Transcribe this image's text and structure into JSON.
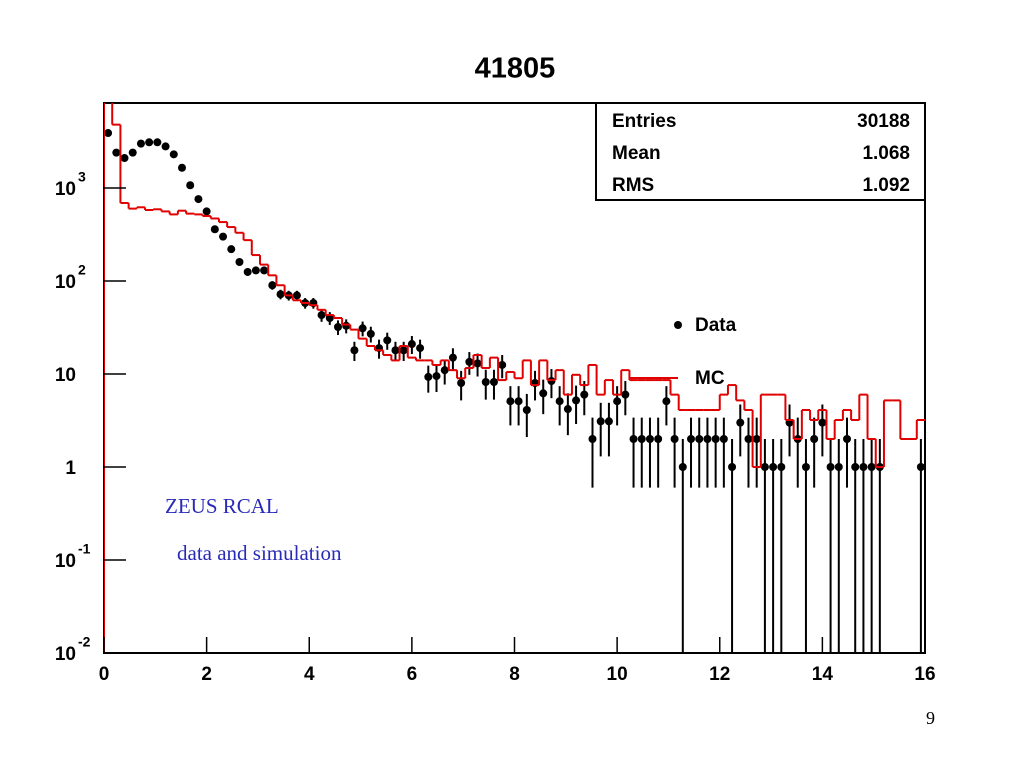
{
  "chart_data": {
    "type": "histogram",
    "title": "41805",
    "bins": [
      0,
      0.16,
      0.32,
      0.48,
      0.64,
      0.8,
      0.96,
      1.12,
      1.28,
      1.44,
      1.6,
      1.76,
      1.92,
      2.08,
      2.24,
      2.4,
      2.56,
      2.72,
      2.88,
      3.04,
      3.2,
      3.36,
      3.52,
      3.68,
      3.84,
      4,
      4.16,
      4.32,
      4.48,
      4.64,
      4.8,
      4.96,
      5.12,
      5.28,
      5.44,
      5.6,
      5.76,
      5.92,
      6.08,
      6.24,
      6.4,
      6.56,
      6.72,
      6.88,
      7.04,
      7.2,
      7.36,
      7.52,
      7.68,
      7.84,
      8,
      8.16,
      8.32,
      8.48,
      8.64,
      8.8,
      8.96,
      9.12,
      9.28,
      9.44,
      9.6,
      9.76,
      9.92,
      10.08,
      10.24,
      10.4,
      10.56,
      10.72,
      10.88,
      11.04,
      11.2,
      11.36,
      11.52,
      11.68,
      11.84,
      12,
      12.16,
      12.32,
      12.48,
      12.64,
      12.8,
      12.96,
      13.12,
      13.28,
      13.44,
      13.6,
      13.76,
      13.92,
      14.08,
      14.24,
      14.4,
      14.56,
      14.72,
      14.88,
      15.04,
      15.2,
      15.36,
      15.52,
      15.68,
      15.84,
      16
    ],
    "series": [
      {
        "name": "Data",
        "color": "#000000",
        "style": "points",
        "values": [
          3900,
          2400,
          2100,
          2400,
          3000,
          3100,
          3100,
          2800,
          2300,
          1650,
          1070,
          760,
          560,
          360,
          300,
          220,
          160,
          125,
          130,
          130,
          90,
          72,
          70,
          70,
          58,
          58,
          43,
          40,
          32,
          33,
          18,
          31,
          27,
          19,
          23,
          18,
          18,
          21,
          19,
          9.3,
          9.5,
          11,
          15,
          8,
          13.5,
          13,
          8.2,
          8.2,
          12.5,
          5.1,
          5.1,
          4.1,
          8,
          6.2,
          8.4,
          5.1,
          4.2,
          5.2,
          6,
          2,
          3.1,
          3.1,
          5.1,
          6,
          2,
          2,
          2,
          2,
          5.1,
          2,
          1,
          2,
          2,
          2,
          2,
          2,
          1,
          3,
          2,
          2,
          1,
          1,
          1,
          3,
          2,
          1,
          2,
          3,
          1,
          1,
          2,
          1,
          1,
          1,
          1,
          null,
          null,
          null,
          null,
          1
        ],
        "errors": [
          62,
          49,
          46,
          49,
          55,
          56,
          56,
          53,
          48,
          41,
          33,
          28,
          24,
          19,
          17,
          15,
          13,
          11,
          11,
          11,
          9.5,
          8.5,
          8.4,
          8.4,
          7.6,
          7.6,
          6.6,
          6.3,
          5.7,
          5.7,
          4.2,
          5.6,
          5.2,
          4.4,
          4.8,
          4.2,
          4.2,
          4.6,
          4.4,
          3,
          3.1,
          3.3,
          3.9,
          2.8,
          3.7,
          3.6,
          2.9,
          2.9,
          3.5,
          2.3,
          2.3,
          2,
          2.8,
          2.5,
          2.9,
          2.3,
          2,
          2.3,
          2.4,
          1.4,
          1.8,
          1.8,
          2.3,
          2.4,
          1.4,
          1.4,
          1.4,
          1.4,
          2.3,
          1.4,
          1,
          1.4,
          1.4,
          1.4,
          1.4,
          1.4,
          1,
          1.7,
          1.4,
          1.4,
          1,
          1,
          1,
          1.7,
          1.4,
          1,
          1.4,
          1.7,
          1,
          1,
          1.4,
          1,
          1,
          1,
          1,
          null,
          null,
          null,
          null,
          1
        ]
      },
      {
        "name": "MC",
        "color": "#e00000",
        "style": "step",
        "values": [
          9000,
          4800,
          690,
          600,
          620,
          580,
          590,
          560,
          520,
          570,
          530,
          520,
          500,
          470,
          430,
          380,
          330,
          275,
          190,
          150,
          115,
          90,
          70,
          62,
          58,
          55,
          49,
          43,
          40,
          34,
          30,
          24,
          20,
          18,
          16,
          14,
          20,
          15,
          14,
          14,
          12.5,
          14,
          11,
          9,
          11.6,
          16,
          11.6,
          15,
          8.6,
          10.5,
          9,
          14,
          7.6,
          14,
          8.6,
          11,
          6,
          9.8,
          7.6,
          12.5,
          6,
          8.6,
          6,
          11,
          8.6,
          8.6,
          8.6,
          8.6,
          8.6,
          6,
          4.1,
          4.1,
          4.1,
          4.1,
          4.1,
          6,
          7.6,
          5.2,
          4.1,
          1,
          6,
          6,
          6,
          3.2,
          2,
          4.1,
          3.2,
          4.1,
          2,
          3.2,
          4.1,
          3.2,
          6,
          2,
          1,
          5.2,
          5.2,
          2,
          2,
          3.2
        ]
      }
    ],
    "xlim": [
      0,
      16
    ],
    "xticks": [
      0,
      2,
      4,
      6,
      8,
      10,
      12,
      14,
      16
    ],
    "ylim": [
      0.01,
      8200
    ],
    "log_y": true,
    "yticks": [
      {
        "value": 0.01,
        "label": "10",
        "exponent": "-2"
      },
      {
        "value": 0.1,
        "label": "10",
        "exponent": "-1"
      },
      1,
      10,
      {
        "value": 100,
        "label": "10",
        "exponent": "2"
      },
      {
        "value": 1000,
        "label": "10",
        "exponent": "3"
      }
    ],
    "legend": "right",
    "stats": [
      {
        "label": "Entries",
        "value": 30188
      },
      {
        "label": "Mean",
        "value": 1.068
      },
      {
        "label": "RMS",
        "value": 1.092
      }
    ],
    "annotations": [
      "ZEUS RCAL",
      "data and simulation"
    ]
  },
  "page_number": "9"
}
